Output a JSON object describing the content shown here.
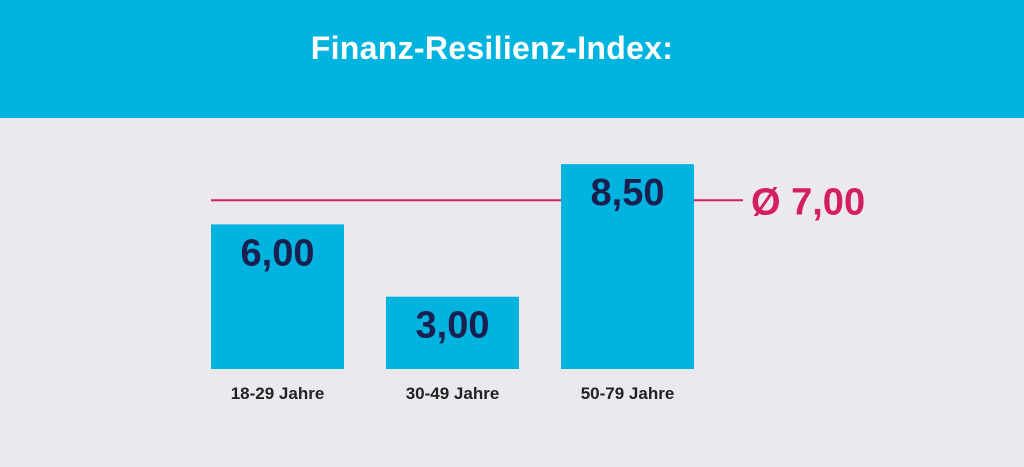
{
  "title": "Finanz-Resilienz-Index:",
  "colors": {
    "header": "#00b4df",
    "background": "#ebe9ee",
    "bar": "#00b4df",
    "average_line": "#d41f5f",
    "value_text": "#1b1f50"
  },
  "chart_data": {
    "type": "bar",
    "title": "Finanz-Resilienz-Index:",
    "categories": [
      "18-29 Jahre",
      "30-49 Jahre",
      "50-79 Jahre"
    ],
    "values": [
      6.0,
      3.0,
      8.5
    ],
    "value_labels": [
      "6,00",
      "3,00",
      "8,50"
    ],
    "average": 7.0,
    "average_label": "Ø 7,00",
    "ylim": [
      0,
      9
    ],
    "grid": false,
    "xlabel": "",
    "ylabel": ""
  }
}
